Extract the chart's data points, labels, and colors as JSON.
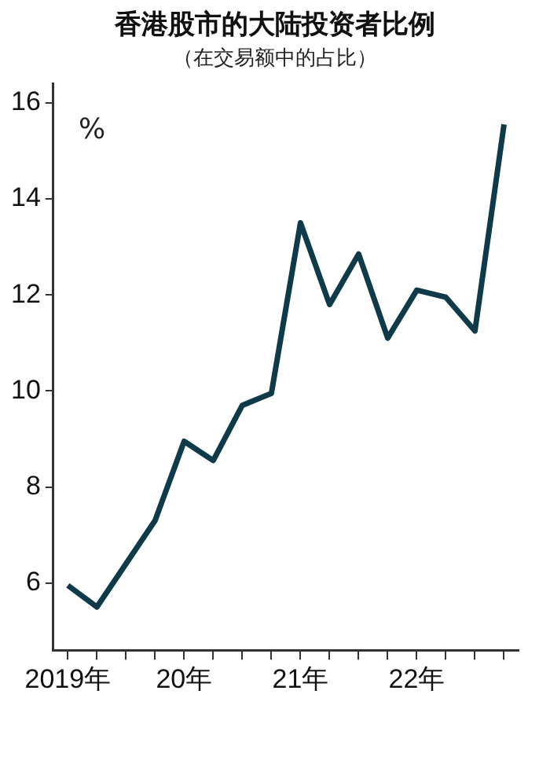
{
  "chart_data": {
    "type": "line",
    "title": "香港股市的大陆投资者比例",
    "subtitle": "（在交易额中的占比）",
    "ylabel": "%",
    "categories": [
      "2019年",
      null,
      null,
      null,
      "20年",
      null,
      null,
      null,
      "21年",
      null,
      null,
      null,
      "22年",
      null,
      null,
      null
    ],
    "series": [
      {
        "color": "#0f3a4a",
        "values": [
          5.95,
          5.5,
          6.4,
          7.3,
          8.95,
          8.55,
          9.7,
          9.95,
          13.5,
          11.8,
          12.85,
          11.1,
          12.1,
          11.95,
          11.25,
          15.55
        ]
      }
    ],
    "ylim": [
      4.6,
      16.4
    ],
    "yticks": [
      6,
      8,
      10,
      12,
      14,
      16
    ],
    "grid": false,
    "legend": false,
    "marker": "none",
    "line_style": "solid"
  }
}
